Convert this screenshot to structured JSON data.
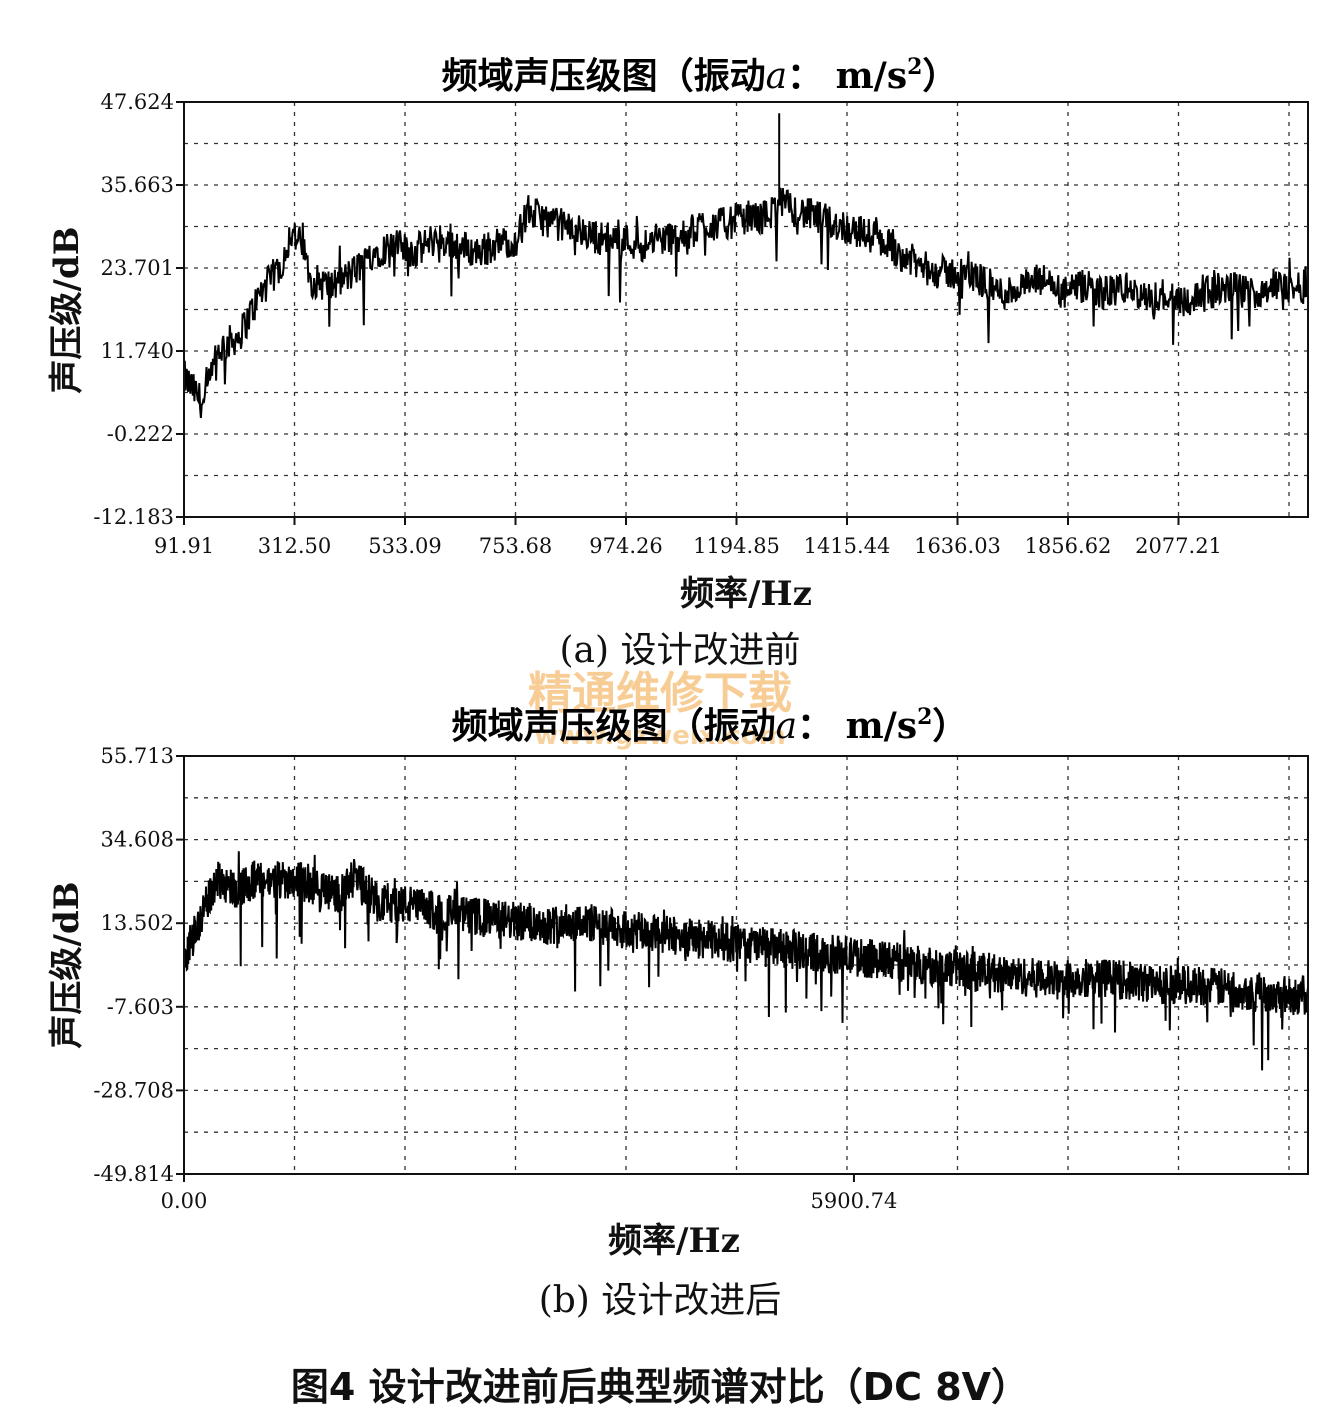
{
  "figure_caption": "图4  设计改进前后典型频谱对比（DC 8V）",
  "watermark": {
    "text": "精通维修下载",
    "url": "www.gzweix.com"
  },
  "chart_data": [
    {
      "type": "line",
      "title_main": "频域声压级图（振动",
      "title_italic": "a",
      "title_unit": "： m/s",
      "title_sup": "2",
      "title_close": "）",
      "xlabel": "频率/Hz",
      "ylabel": "声压级/dB",
      "caption": "(a) 设计改进前",
      "xlim": [
        91.91,
        2275
      ],
      "ylim": [
        -12.183,
        47.624
      ],
      "xticks": [
        "91.91",
        "312.50",
        "533.09",
        "753.68",
        "974.26",
        "1194.85",
        "1415.44",
        "1636.03",
        "1856.62",
        "2077.21"
      ],
      "yticks": [
        "47.624",
        "35.663",
        "23.701",
        "11.740",
        "-0.222",
        "-12.183"
      ],
      "grid": true,
      "series": [
        {
          "x": [
            92,
            130,
            160,
            200,
            240,
            260,
            280,
            300,
            320,
            340,
            380,
            420,
            460,
            500,
            540,
            580,
            620,
            660,
            700,
            740,
            760,
            780,
            820,
            860,
            900,
            940,
            980,
            1020,
            1060,
            1100,
            1140,
            1180,
            1220,
            1250,
            1280,
            1320,
            1360,
            1400,
            1440,
            1480,
            1520,
            1560,
            1600,
            1640,
            1680,
            1720,
            1760,
            1800,
            1840,
            1880,
            1920,
            1960,
            2000,
            2040,
            2080,
            2120,
            2160,
            2200,
            2240,
            2275
          ],
          "values": [
            8,
            4,
            12,
            14,
            20,
            22,
            24,
            29,
            27,
            22,
            21,
            23,
            26,
            27,
            26,
            28,
            27,
            26,
            27,
            28,
            32,
            31,
            30,
            29,
            28,
            28,
            27,
            28,
            28,
            30,
            30,
            31,
            31,
            33,
            32,
            31,
            30,
            29,
            28,
            26,
            24,
            23,
            23,
            22,
            20,
            21,
            22,
            20,
            21,
            20,
            21,
            19,
            20,
            19,
            20,
            21,
            20,
            21,
            21,
            21
          ],
          "peak": {
            "x": 1248,
            "value": 46
          }
        }
      ]
    },
    {
      "type": "line",
      "title_main": "频域声压级图（振动",
      "title_italic": "a",
      "title_unit": "： m/s",
      "title_sup": "2",
      "title_close": "）",
      "xlabel": "频率/Hz",
      "ylabel": "声压级/dB",
      "caption": "(b) 设计改进后",
      "xlim": [
        0,
        9900
      ],
      "ylim": [
        -49.814,
        55.713
      ],
      "xticks": [
        "0.00",
        "5900.74"
      ],
      "xtick_values": [
        0,
        5900.74
      ],
      "yticks": [
        "55.713",
        "34.608",
        "13.502",
        "-7.603",
        "-28.708",
        "-49.814"
      ],
      "grid": true,
      "series": [
        {
          "x": [
            0,
            150,
            300,
            450,
            600,
            800,
            1000,
            1200,
            1400,
            1500,
            1700,
            2000,
            2300,
            2600,
            2900,
            3200,
            3500,
            3800,
            4100,
            4400,
            4700,
            5000,
            5300,
            5600,
            5900,
            6200,
            6500,
            6800,
            7100,
            7400,
            7700,
            8000,
            8300,
            8600,
            8900,
            9200,
            9500,
            9900
          ],
          "values": [
            5,
            15,
            25,
            22,
            24,
            24,
            25,
            22,
            21,
            25,
            19,
            18,
            16,
            15,
            14,
            13,
            14,
            12,
            11,
            10,
            9,
            8,
            7,
            6,
            5,
            4,
            3,
            2,
            1,
            0,
            -1,
            0,
            -1,
            -2,
            -2,
            -3,
            -4,
            -5
          ]
        }
      ]
    }
  ]
}
